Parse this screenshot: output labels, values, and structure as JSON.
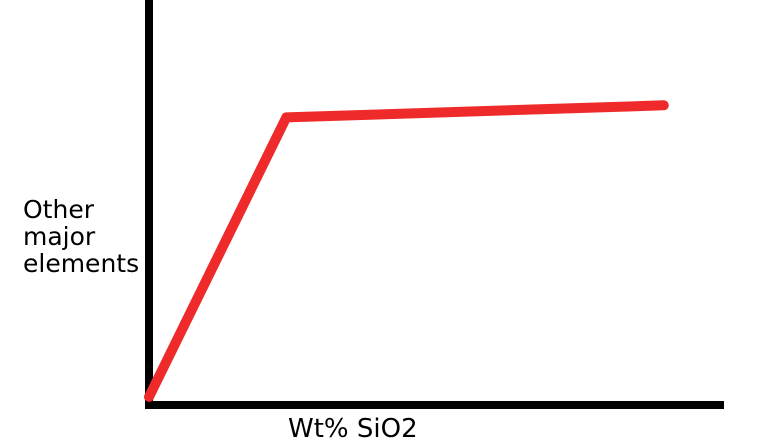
{
  "chart_data": {
    "type": "line",
    "xlabel": "Wt% SiO2",
    "ylabel_lines": [
      "Other",
      "major",
      "elements"
    ],
    "grid": false,
    "legend": "none",
    "xlim": [
      0,
      100
    ],
    "ylim": [
      0,
      100
    ],
    "series": [
      {
        "x": [
          0,
          24,
          90
        ],
        "y": [
          2,
          71,
          74
        ],
        "color": "#ee2a2a"
      }
    ],
    "axis_color": "#000000"
  }
}
